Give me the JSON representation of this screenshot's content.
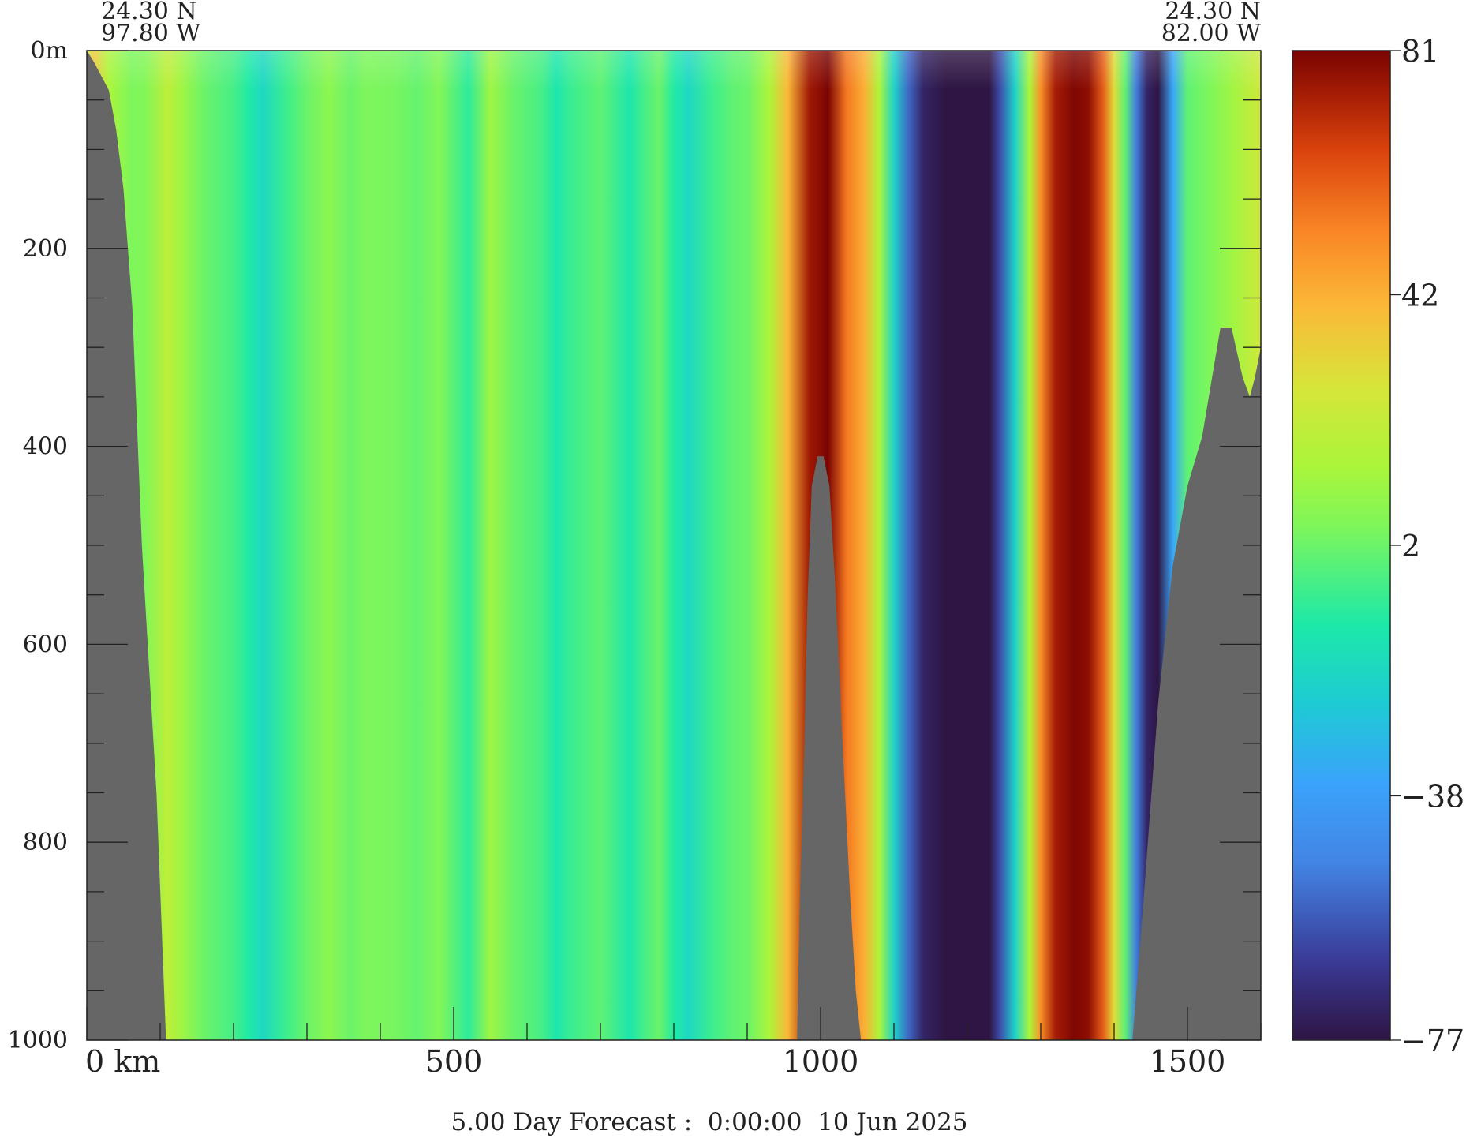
{
  "chart_data": {
    "type": "heatmap",
    "title": "",
    "footer": "5.00 Day Forecast :  0:00:00  10 Jun 2025",
    "corner_top_left": {
      "lat": "24.30 N",
      "lon": "97.80 W"
    },
    "corner_top_right": {
      "lat": "24.30 N",
      "lon": "82.00 W"
    },
    "x_axis": {
      "unit_label": "km",
      "range": [
        0,
        1600
      ],
      "major_ticks": [
        0,
        500,
        1000,
        1500
      ],
      "tick_labels": [
        "0 km",
        "500",
        "1000",
        "1500"
      ],
      "minor_step": 100
    },
    "y_axis": {
      "unit_label": "m",
      "range": [
        0,
        1000
      ],
      "inverted": true,
      "major_ticks": [
        0,
        200,
        400,
        600,
        800,
        1000
      ],
      "tick_labels": [
        "0m",
        "200",
        "400",
        "600",
        "800",
        "1000"
      ],
      "minor_step": 50
    },
    "colorbar": {
      "min": -77,
      "max": 81,
      "tick_values": [
        81,
        42,
        2,
        -38,
        -77
      ],
      "tick_labels": [
        "81",
        "42",
        "2",
        "−38",
        "−77"
      ],
      "colormap": "turbo"
    },
    "land_color": "#666666",
    "field_columns_km_value": [
      [
        0,
        25
      ],
      [
        10,
        35
      ],
      [
        30,
        15
      ],
      [
        60,
        5
      ],
      [
        80,
        6
      ],
      [
        110,
        20
      ],
      [
        130,
        12
      ],
      [
        160,
        2
      ],
      [
        200,
        -4
      ],
      [
        220,
        -10
      ],
      [
        240,
        -18
      ],
      [
        270,
        -6
      ],
      [
        300,
        2
      ],
      [
        330,
        8
      ],
      [
        360,
        2
      ],
      [
        380,
        5
      ],
      [
        420,
        4
      ],
      [
        450,
        1
      ],
      [
        480,
        6
      ],
      [
        520,
        -8
      ],
      [
        550,
        12
      ],
      [
        580,
        2
      ],
      [
        620,
        -4
      ],
      [
        640,
        -12
      ],
      [
        660,
        -6
      ],
      [
        700,
        0
      ],
      [
        740,
        -12
      ],
      [
        760,
        -4
      ],
      [
        780,
        2
      ],
      [
        800,
        -10
      ],
      [
        820,
        -18
      ],
      [
        850,
        -6
      ],
      [
        880,
        0
      ],
      [
        900,
        2
      ],
      [
        930,
        15
      ],
      [
        955,
        40
      ],
      [
        985,
        75
      ],
      [
        1010,
        81
      ],
      [
        1035,
        55
      ],
      [
        1060,
        42
      ],
      [
        1080,
        15
      ],
      [
        1100,
        -20
      ],
      [
        1120,
        -55
      ],
      [
        1140,
        -72
      ],
      [
        1170,
        -77
      ],
      [
        1200,
        -77
      ],
      [
        1230,
        -77
      ],
      [
        1245,
        -60
      ],
      [
        1265,
        -20
      ],
      [
        1285,
        15
      ],
      [
        1300,
        50
      ],
      [
        1320,
        74
      ],
      [
        1345,
        80
      ],
      [
        1365,
        78
      ],
      [
        1385,
        60
      ],
      [
        1400,
        30
      ],
      [
        1415,
        0
      ],
      [
        1430,
        -50
      ],
      [
        1445,
        -72
      ],
      [
        1460,
        -77
      ],
      [
        1480,
        -35
      ],
      [
        1500,
        0
      ],
      [
        1530,
        5
      ],
      [
        1560,
        12
      ],
      [
        1600,
        25
      ]
    ],
    "topography_km_depth_m": [
      [
        0,
        0
      ],
      [
        10,
        12
      ],
      [
        30,
        40
      ],
      [
        40,
        80
      ],
      [
        50,
        140
      ],
      [
        62,
        260
      ],
      [
        75,
        500
      ],
      [
        95,
        750
      ],
      [
        108,
        1000
      ],
      [
        968,
        1000
      ],
      [
        972,
        850
      ],
      [
        978,
        700
      ],
      [
        982,
        560
      ],
      [
        988,
        440
      ],
      [
        996,
        410
      ],
      [
        1004,
        410
      ],
      [
        1012,
        440
      ],
      [
        1020,
        540
      ],
      [
        1030,
        700
      ],
      [
        1040,
        850
      ],
      [
        1048,
        950
      ],
      [
        1055,
        1000
      ],
      [
        1425,
        1000
      ],
      [
        1440,
        860
      ],
      [
        1460,
        660
      ],
      [
        1480,
        520
      ],
      [
        1500,
        440
      ],
      [
        1520,
        390
      ],
      [
        1545,
        280
      ],
      [
        1560,
        280
      ],
      [
        1575,
        330
      ],
      [
        1585,
        350
      ],
      [
        1592,
        330
      ],
      [
        1600,
        300
      ],
      [
        1600,
        1000
      ]
    ]
  }
}
